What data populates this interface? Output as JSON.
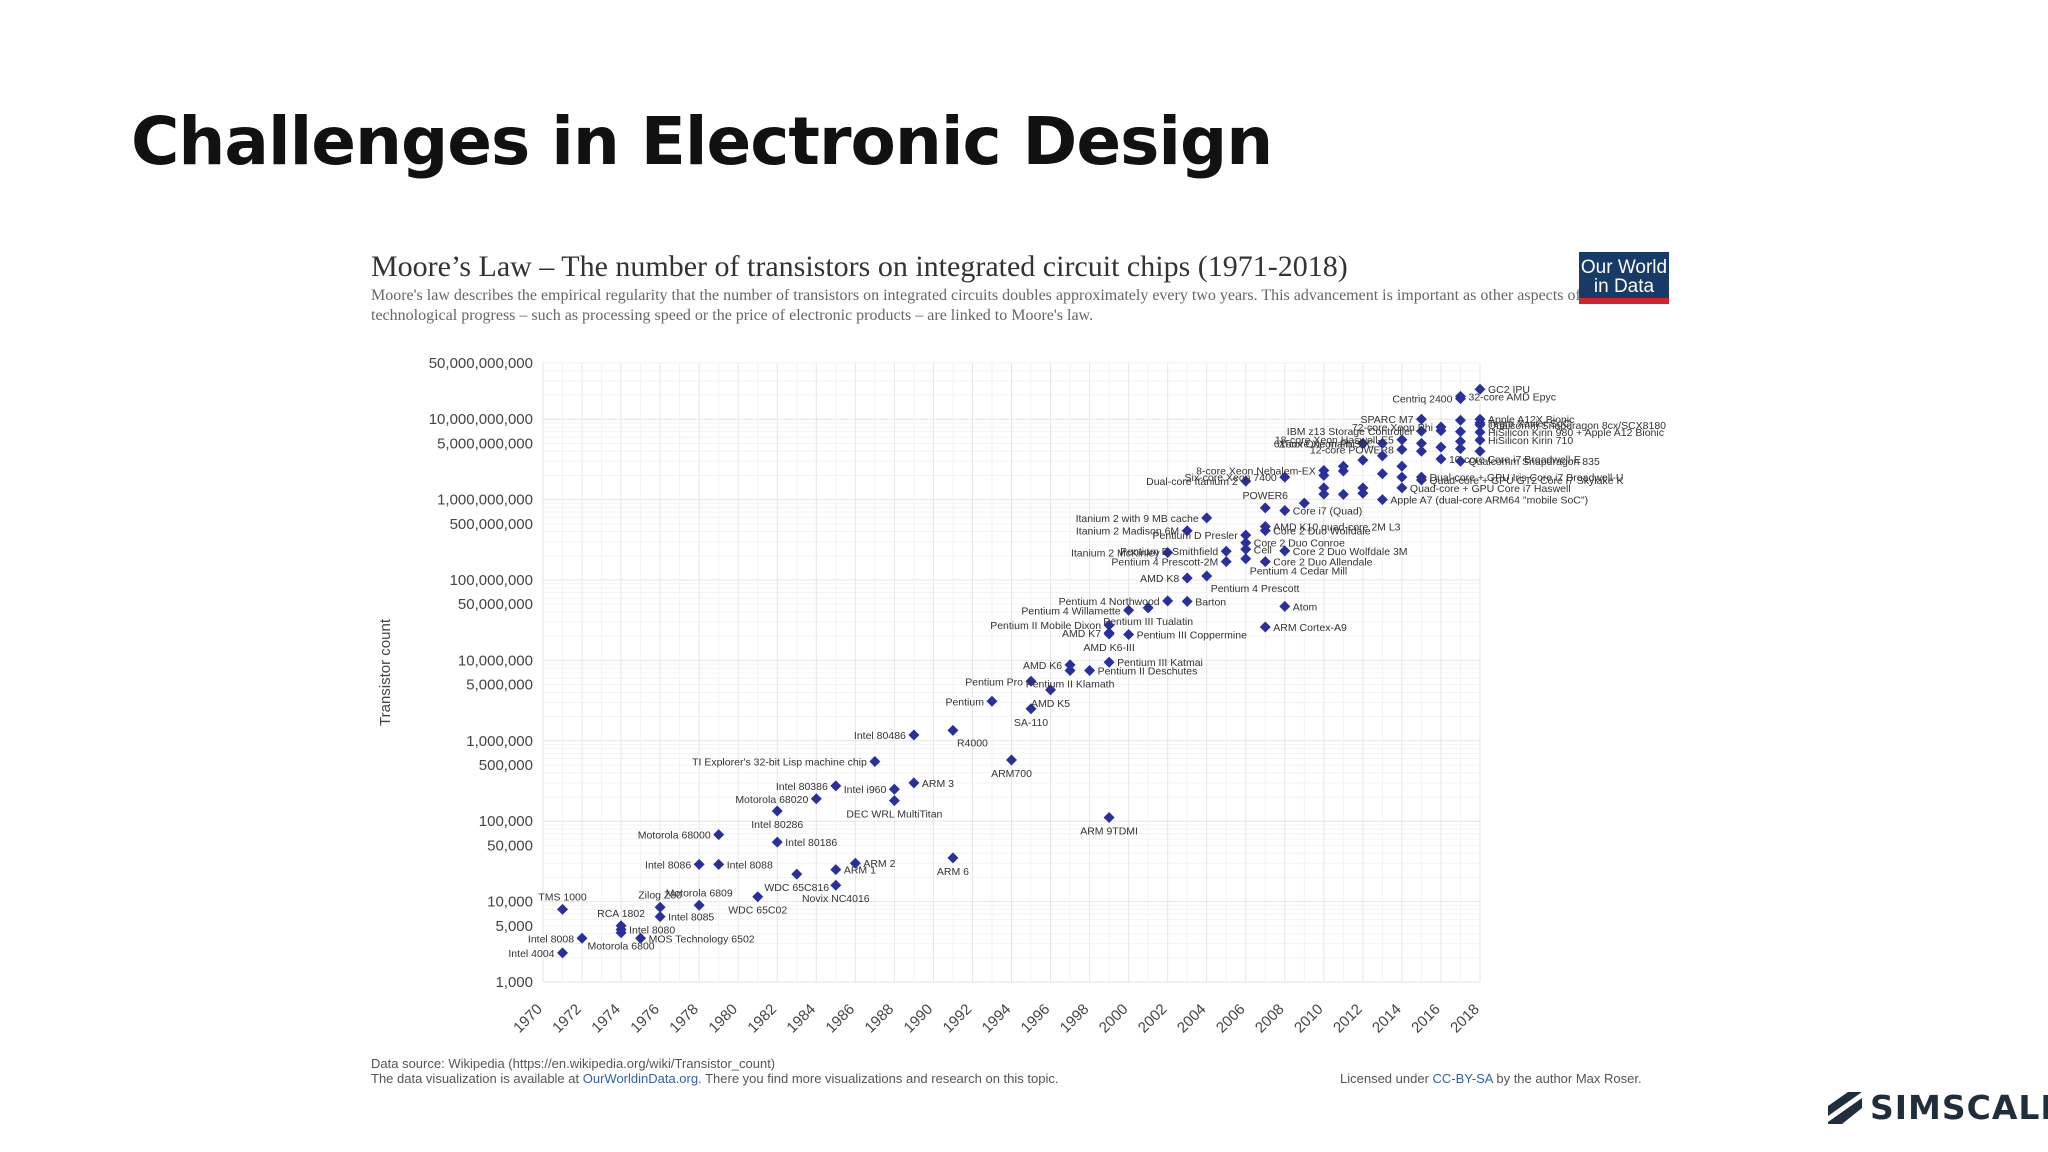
{
  "slide": {
    "title": "Challenges in Electronic Design",
    "brand": "SIMSCALE"
  },
  "figure": {
    "logo_line1": "Our World",
    "logo_line2": "in Data",
    "source_line": "Data source: Wikipedia (https://en.wikipedia.org/wiki/Transistor_count)",
    "viz_prefix": "The data visualization is available at ",
    "viz_link": "OurWorldinData.org",
    "viz_suffix": ". There you find more visualizations and research on this topic.",
    "license_prefix": "Licensed under ",
    "license_link": "CC-BY-SA",
    "license_suffix": " by the author Max Roser.",
    "colors": {
      "point": "#2a2f9e",
      "logo_bg": "#173a66",
      "logo_bar": "#d6222d",
      "link": "#3360a9",
      "brand": "#1f2d3d"
    }
  },
  "chart_data": {
    "type": "scatter",
    "title": "Moore’s Law – The number of transistors on integrated circuit chips (1971-2018)",
    "subtitle": "Moore's law describes the empirical regularity that the number of transistors on integrated circuits doubles approximately every two years. This advancement is important as other aspects of technological progress – such as processing speed or the price of electronic products – are linked to Moore's law.",
    "ylabel": "Transistor count",
    "xlabel": "",
    "xlim": [
      1970,
      2018
    ],
    "ylim": [
      1000,
      50000000000
    ],
    "yscale": "log",
    "grid": true,
    "x_ticks": [
      "1970",
      "1972",
      "1974",
      "1976",
      "1978",
      "1980",
      "1982",
      "1984",
      "1986",
      "1988",
      "1990",
      "1992",
      "1994",
      "1996",
      "1998",
      "2000",
      "2002",
      "2004",
      "2006",
      "2008",
      "2010",
      "2012",
      "2014",
      "2016",
      "2018"
    ],
    "y_ticks": [
      {
        "value": 1000,
        "label": "1,000"
      },
      {
        "value": 5000,
        "label": "5,000"
      },
      {
        "value": 10000,
        "label": "10,000"
      },
      {
        "value": 50000,
        "label": "50,000"
      },
      {
        "value": 100000,
        "label": "100,000"
      },
      {
        "value": 500000,
        "label": "500,000"
      },
      {
        "value": 1000000,
        "label": "1,000,000"
      },
      {
        "value": 5000000,
        "label": "5,000,000"
      },
      {
        "value": 10000000,
        "label": "10,000,000"
      },
      {
        "value": 50000000,
        "label": "50,000,000"
      },
      {
        "value": 100000000,
        "label": "100,000,000"
      },
      {
        "value": 500000000,
        "label": "500,000,000"
      },
      {
        "value": 1000000000,
        "label": "1,000,000,000"
      },
      {
        "value": 5000000000,
        "label": "5,000,000,000"
      },
      {
        "value": 10000000000,
        "label": "10,000,000,000"
      },
      {
        "value": 50000000000,
        "label": "50,000,000,000"
      }
    ],
    "points": [
      {
        "name": "Intel 4004",
        "x": 1971,
        "y": 2300,
        "side": "L"
      },
      {
        "name": "Intel 8008",
        "x": 1972,
        "y": 3500,
        "side": "L"
      },
      {
        "name": "TMS 1000",
        "x": 1971,
        "y": 8000,
        "side": "T"
      },
      {
        "name": "RCA 1802",
        "x": 1974,
        "y": 5000,
        "side": "T"
      },
      {
        "name": "Intel 8080",
        "x": 1974,
        "y": 4500,
        "side": "R"
      },
      {
        "name": "Motorola 6800",
        "x": 1974,
        "y": 4100,
        "side": "B"
      },
      {
        "name": "MOS Technology 6502",
        "x": 1975,
        "y": 3500,
        "side": "R"
      },
      {
        "name": "Zilog Z80",
        "x": 1976,
        "y": 8500,
        "side": "T"
      },
      {
        "name": "Intel 8085",
        "x": 1976,
        "y": 6500,
        "side": "R"
      },
      {
        "name": "Motorola 6809",
        "x": 1978,
        "y": 9000,
        "side": "T"
      },
      {
        "name": "Intel 8086",
        "x": 1978,
        "y": 29000,
        "side": "L"
      },
      {
        "name": "Intel 8088",
        "x": 1979,
        "y": 29000,
        "side": "R"
      },
      {
        "name": "WDC 65C02",
        "x": 1981,
        "y": 11500,
        "side": "B"
      },
      {
        "name": "Motorola 68000",
        "x": 1979,
        "y": 68000,
        "side": "L"
      },
      {
        "name": "Intel 80186",
        "x": 1982,
        "y": 55000,
        "side": "R"
      },
      {
        "name": "Intel 80286",
        "x": 1982,
        "y": 134000,
        "side": "B"
      },
      {
        "name": "WDC 65C816",
        "x": 1983,
        "y": 22000,
        "side": "B"
      },
      {
        "name": "Motorola 68020",
        "x": 1984,
        "y": 190000,
        "side": "L"
      },
      {
        "name": "Intel 80386",
        "x": 1985,
        "y": 275000,
        "side": "L"
      },
      {
        "name": "ARM 1",
        "x": 1985,
        "y": 25000,
        "side": "R"
      },
      {
        "name": "Novix NC4016",
        "x": 1985,
        "y": 16000,
        "side": "B"
      },
      {
        "name": "ARM 2",
        "x": 1986,
        "y": 30000,
        "side": "R"
      },
      {
        "name": "TI Explorer's 32-bit Lisp machine chip",
        "x": 1987,
        "y": 553000,
        "side": "L"
      },
      {
        "name": "Intel i960",
        "x": 1988,
        "y": 250000,
        "side": "L"
      },
      {
        "name": "DEC WRL MultiTitan",
        "x": 1988,
        "y": 180000,
        "side": "B"
      },
      {
        "name": "ARM 3",
        "x": 1989,
        "y": 300000,
        "side": "R"
      },
      {
        "name": "Intel 80486",
        "x": 1989,
        "y": 1180000,
        "side": "L"
      },
      {
        "name": "ARM 6",
        "x": 1991,
        "y": 35000,
        "side": "B"
      },
      {
        "name": "R4000",
        "x": 1991,
        "y": 1350000,
        "side": "BR"
      },
      {
        "name": "ARM700",
        "x": 1994,
        "y": 578000,
        "side": "B"
      },
      {
        "name": "Pentium",
        "x": 1993,
        "y": 3100000,
        "side": "L"
      },
      {
        "name": "SA-110",
        "x": 1995,
        "y": 2500000,
        "side": "B"
      },
      {
        "name": "AMD K5",
        "x": 1996,
        "y": 4300000,
        "side": "B"
      },
      {
        "name": "Pentium Pro",
        "x": 1995,
        "y": 5500000,
        "side": "L"
      },
      {
        "name": "Pentium II Klamath",
        "x": 1997,
        "y": 7500000,
        "side": "B"
      },
      {
        "name": "AMD K6",
        "x": 1997,
        "y": 8800000,
        "side": "L"
      },
      {
        "name": "Pentium II Deschutes",
        "x": 1998,
        "y": 7500000,
        "side": "R"
      },
      {
        "name": "Pentium III Katmai",
        "x": 1999,
        "y": 9500000,
        "side": "R"
      },
      {
        "name": "ARM 9TDMI",
        "x": 1999,
        "y": 111000,
        "side": "B"
      },
      {
        "name": "AMD K6-III",
        "x": 1999,
        "y": 21300000,
        "side": "B"
      },
      {
        "name": "AMD K7",
        "x": 1999,
        "y": 22000000,
        "side": "L"
      },
      {
        "name": "Pentium II Mobile Dixon",
        "x": 1999,
        "y": 27400000,
        "side": "L"
      },
      {
        "name": "Pentium III Coppermine",
        "x": 2000,
        "y": 21000000,
        "side": "R"
      },
      {
        "name": "Pentium 4 Willamette",
        "x": 2000,
        "y": 42000000,
        "side": "L"
      },
      {
        "name": "Pentium III Tualatin",
        "x": 2001,
        "y": 45000000,
        "side": "B"
      },
      {
        "name": "Pentium 4 Northwood",
        "x": 2002,
        "y": 55000000,
        "side": "L"
      },
      {
        "name": "Barton",
        "x": 2003,
        "y": 54300000,
        "side": "R"
      },
      {
        "name": "AMD K8",
        "x": 2003,
        "y": 105900000,
        "side": "L"
      },
      {
        "name": "Pentium 4 Prescott",
        "x": 2004,
        "y": 112000000,
        "side": "BR"
      },
      {
        "name": "Itanium 2 McKinley",
        "x": 2002,
        "y": 220000000,
        "side": "L"
      },
      {
        "name": "Itanium 2 Madison 6M",
        "x": 2003,
        "y": 410000000,
        "side": "L"
      },
      {
        "name": "Itanium 2 with 9 MB cache",
        "x": 2004,
        "y": 592000000,
        "side": "L"
      },
      {
        "name": "Pentium 4 Prescott-2M",
        "x": 2005,
        "y": 169000000,
        "side": "L"
      },
      {
        "name": "Pentium D Smithfield",
        "x": 2005,
        "y": 228000000,
        "side": "L"
      },
      {
        "name": "Pentium D Presler",
        "x": 2006,
        "y": 362000000,
        "side": "L"
      },
      {
        "name": "Cell",
        "x": 2006,
        "y": 241000000,
        "side": "R"
      },
      {
        "name": "Pentium 4 Cedar Mill",
        "x": 2006,
        "y": 184000000,
        "side": "BR"
      },
      {
        "name": "Core 2 Duo Conroe",
        "x": 2006,
        "y": 291000000,
        "side": "R"
      },
      {
        "name": "Core 2 Duo Allendale",
        "x": 2007,
        "y": 169000000,
        "side": "R"
      },
      {
        "name": "Core 2 Duo Wolfdale",
        "x": 2007,
        "y": 411000000,
        "side": "R"
      },
      {
        "name": "AMD K10 quad-core 2M L3",
        "x": 2007,
        "y": 463000000,
        "side": "R"
      },
      {
        "name": "Core 2 Duo Wolfdale 3M",
        "x": 2008,
        "y": 230000000,
        "side": "R"
      },
      {
        "name": "Atom",
        "x": 2008,
        "y": 47000000,
        "side": "R"
      },
      {
        "name": "ARM Cortex-A9",
        "x": 2007,
        "y": 26000000,
        "side": "R"
      },
      {
        "name": "Core i7 (Quad)",
        "x": 2008,
        "y": 731000000,
        "side": "R"
      },
      {
        "name": "POWER6",
        "x": 2007,
        "y": 789000000,
        "side": "T"
      },
      {
        "name": "Dual-core Itanium 2",
        "x": 2006,
        "y": 1700000000,
        "side": "L"
      },
      {
        "name": "Six-core Xeon 7400",
        "x": 2008,
        "y": 1900000000,
        "side": "L"
      },
      {
        "name": "8-core Xeon Nehalem-EX",
        "x": 2010,
        "y": 2300000000,
        "side": "L"
      },
      {
        "name": "12-core POWER8",
        "x": 2014,
        "y": 4200000000,
        "side": "L"
      },
      {
        "name": "61-core Xeon Phi",
        "x": 2012,
        "y": 5000000000,
        "side": "L"
      },
      {
        "name": "Xbox One main SoC",
        "x": 2013,
        "y": 5000000000,
        "side": "L"
      },
      {
        "name": "18-core Xeon Haswell-E5",
        "x": 2014,
        "y": 5560000000,
        "side": "L"
      },
      {
        "name": "IBM z13 Storage Controller",
        "x": 2015,
        "y": 7100000000,
        "side": "L"
      },
      {
        "name": "SPARC M7",
        "x": 2015,
        "y": 10000000000,
        "side": "L"
      },
      {
        "name": "72-core Xeon Phi",
        "x": 2016,
        "y": 8000000000,
        "side": "L"
      },
      {
        "name": "Centriq 2400",
        "x": 2017,
        "y": 18000000000,
        "side": "L"
      },
      {
        "name": "GC2 IPU",
        "x": 2018,
        "y": 23600000000,
        "side": "R"
      },
      {
        "name": "32-core AMD Epyc",
        "x": 2017,
        "y": 19200000000,
        "side": "R"
      },
      {
        "name": "Apple A12X Bionic",
        "x": 2018,
        "y": 10000000000,
        "side": "R"
      },
      {
        "name": "Tegra Xavier SoC",
        "x": 2018,
        "y": 9000000000,
        "side": "R"
      },
      {
        "name": "Qualcomm Snapdragon 8cx/SCX8180",
        "x": 2018,
        "y": 8500000000,
        "side": "R"
      },
      {
        "name": "HiSilicon Kirin 980 + Apple A12 Bionic",
        "x": 2018,
        "y": 6900000000,
        "side": "R"
      },
      {
        "name": "HiSilicon Kirin 710",
        "x": 2018,
        "y": 5500000000,
        "side": "R"
      },
      {
        "name": "10-core Core i7 Broadwell-E",
        "x": 2016,
        "y": 3200000000,
        "side": "R"
      },
      {
        "name": "Qualcomm Snapdragon 835",
        "x": 2017,
        "y": 3000000000,
        "side": "R"
      },
      {
        "name": "Dual-core + GPU Iris Core i7 Broadwell-U",
        "x": 2015,
        "y": 1900000000,
        "side": "R"
      },
      {
        "name": "Quad-core + GPU GT2 Core i7 Skylake K",
        "x": 2015,
        "y": 1750000000,
        "side": "R"
      },
      {
        "name": "Quad-core + GPU Core i7 Haswell",
        "x": 2014,
        "y": 1400000000,
        "side": "R"
      },
      {
        "name": "Apple A7 (dual-core ARM64 \"mobile SoC\")",
        "x": 2013,
        "y": 1000000000,
        "side": "R"
      },
      {
        "name": "",
        "x": 2009,
        "y": 904000000,
        "side": "N"
      },
      {
        "name": "",
        "x": 2010,
        "y": 1170000000,
        "side": "N"
      },
      {
        "name": "",
        "x": 2010,
        "y": 1400000000,
        "side": "N"
      },
      {
        "name": "",
        "x": 2010,
        "y": 2000000000,
        "side": "N"
      },
      {
        "name": "",
        "x": 2011,
        "y": 1160000000,
        "side": "N"
      },
      {
        "name": "",
        "x": 2011,
        "y": 2270000000,
        "side": "N"
      },
      {
        "name": "",
        "x": 2011,
        "y": 2600000000,
        "side": "N"
      },
      {
        "name": "",
        "x": 2012,
        "y": 1400000000,
        "side": "N"
      },
      {
        "name": "",
        "x": 2012,
        "y": 1200000000,
        "side": "N"
      },
      {
        "name": "",
        "x": 2012,
        "y": 3100000000,
        "side": "N"
      },
      {
        "name": "",
        "x": 2013,
        "y": 2100000000,
        "side": "N"
      },
      {
        "name": "",
        "x": 2013,
        "y": 3500000000,
        "side": "N"
      },
      {
        "name": "",
        "x": 2014,
        "y": 2600000000,
        "side": "N"
      },
      {
        "name": "",
        "x": 2014,
        "y": 1900000000,
        "side": "N"
      },
      {
        "name": "",
        "x": 2015,
        "y": 3990000000,
        "side": "N"
      },
      {
        "name": "",
        "x": 2015,
        "y": 5000000000,
        "side": "N"
      },
      {
        "name": "",
        "x": 2016,
        "y": 4500000000,
        "side": "N"
      },
      {
        "name": "",
        "x": 2016,
        "y": 7200000000,
        "side": "N"
      },
      {
        "name": "",
        "x": 2017,
        "y": 4300000000,
        "side": "N"
      },
      {
        "name": "",
        "x": 2017,
        "y": 5300000000,
        "side": "N"
      },
      {
        "name": "",
        "x": 2017,
        "y": 7000000000,
        "side": "N"
      },
      {
        "name": "",
        "x": 2017,
        "y": 9700000000,
        "side": "N"
      },
      {
        "name": "",
        "x": 2018,
        "y": 4000000000,
        "side": "N"
      }
    ]
  }
}
